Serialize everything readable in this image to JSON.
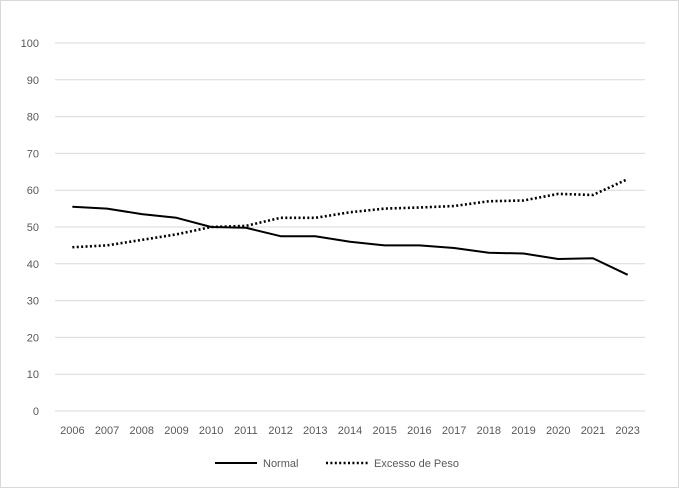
{
  "chart_data": {
    "type": "line",
    "title": "",
    "xlabel": "",
    "ylabel": "",
    "categories": [
      "2006",
      "2007",
      "2008",
      "2009",
      "2010",
      "2011",
      "2012",
      "2013",
      "2014",
      "2015",
      "2016",
      "2017",
      "2018",
      "2019",
      "2020",
      "2021",
      "2023"
    ],
    "ylim": [
      0,
      100
    ],
    "yticks": [
      0,
      10,
      20,
      30,
      40,
      50,
      60,
      70,
      80,
      90,
      100
    ],
    "grid": true,
    "legend_position": "bottom",
    "series": [
      {
        "name": "Normal",
        "line_style": "solid",
        "color": "#000000",
        "values": [
          55.5,
          55.0,
          53.5,
          52.5,
          50.0,
          49.8,
          47.5,
          47.5,
          46.0,
          45.0,
          45.0,
          44.3,
          43.0,
          42.8,
          41.3,
          41.5,
          37.0
        ]
      },
      {
        "name": "Excesso de Peso",
        "line_style": "dotted",
        "color": "#000000",
        "values": [
          44.5,
          45.0,
          46.5,
          48.0,
          50.0,
          50.3,
          52.5,
          52.5,
          54.0,
          55.0,
          55.3,
          55.7,
          57.0,
          57.2,
          59.0,
          58.7,
          63.0
        ]
      }
    ]
  }
}
